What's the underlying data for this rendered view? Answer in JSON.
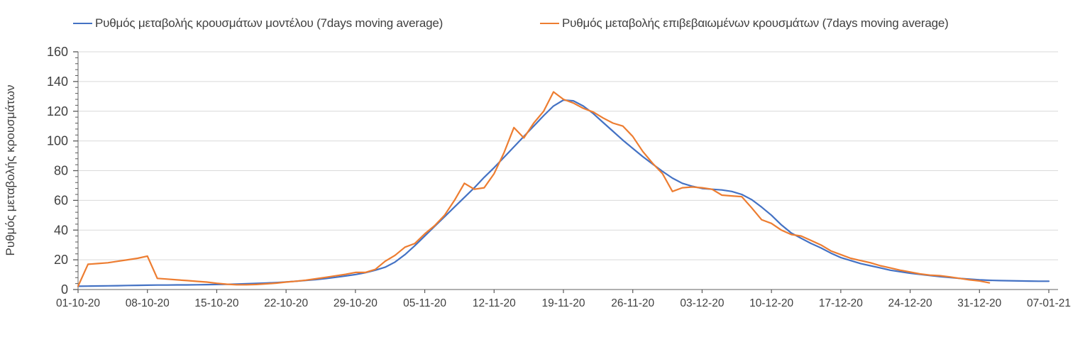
{
  "chart_data": {
    "type": "line",
    "title": "",
    "xlabel": "",
    "ylabel": "Ρυθμός μεταβολής κρουσμάτων",
    "ylim": [
      0,
      160
    ],
    "y_ticks": [
      0,
      20,
      40,
      60,
      80,
      100,
      120,
      140,
      160
    ],
    "y_minor_tick_step": 4,
    "grid": "horizontal gridlines at every 20 units",
    "gridline_color": "#d9d9d9",
    "axis_color": "#808080",
    "tick_color": "#595959",
    "text_color": "#404040",
    "legend_position": "top",
    "x_tick_labels": [
      "01-10-20",
      "08-10-20",
      "15-10-20",
      "22-10-20",
      "29-10-20",
      "05-11-20",
      "12-11-20",
      "19-11-20",
      "26-11-20",
      "03-12-20",
      "10-12-20",
      "17-12-20",
      "24-12-20",
      "31-12-20",
      "07-01-21"
    ],
    "x_days_per_tick": 7,
    "x_total_days": 98,
    "x_unit": "daily points, dd-mm-yy",
    "series": [
      {
        "name": "Ρυθμός μεταβολής κρουσμάτων μοντέλου (7days moving average)",
        "color": "#4472C4",
        "start_day": 0,
        "values": [
          2.2,
          2.3,
          2.4,
          2.5,
          2.6,
          2.7,
          2.8,
          2.9,
          3,
          3,
          3.1,
          3.1,
          3.2,
          3.3,
          3.4,
          3.5,
          3.7,
          3.9,
          4.1,
          4.4,
          4.7,
          5.1,
          5.6,
          6.1,
          6.7,
          7.4,
          8.2,
          9.1,
          10.1,
          11.3,
          13,
          15,
          18.5,
          23.5,
          29.5,
          36,
          42.5,
          49,
          55.5,
          62,
          68.5,
          75.5,
          82,
          89,
          96,
          103,
          110,
          117,
          123.5,
          127.5,
          127,
          123.5,
          118.5,
          112.5,
          106.5,
          100.5,
          95,
          89.5,
          84.5,
          79.5,
          75,
          71.5,
          69.5,
          68,
          67.5,
          67,
          66,
          64,
          60.5,
          55.5,
          50,
          43.5,
          38,
          34.5,
          31,
          28,
          24.5,
          21.5,
          19.5,
          17.5,
          16,
          14.5,
          13,
          12,
          11,
          10.2,
          9.4,
          8.7,
          8.1,
          7.5,
          7,
          6.5,
          6.2,
          6,
          5.9,
          5.8,
          5.7,
          5.6,
          5.6
        ]
      },
      {
        "name": "Ρυθμός μεταβολής επιβεβαιωμένων κρουσμάτων (7days moving average)",
        "color": "#ED7D31",
        "start_day": 0,
        "values": [
          2.2,
          17,
          17.5,
          18,
          19,
          20,
          21,
          22.5,
          7.5,
          7,
          6.5,
          6,
          5.5,
          5,
          4.2,
          3.6,
          3.2,
          3.2,
          3.4,
          3.8,
          4.3,
          5,
          5.6,
          6.3,
          7.2,
          8.2,
          9.2,
          10.2,
          11.5,
          11.5,
          13.5,
          19,
          23,
          28.5,
          31,
          37.5,
          43,
          50,
          60,
          71.5,
          67.5,
          68.5,
          78,
          92,
          109,
          102,
          112,
          120,
          133,
          128,
          125.5,
          122,
          119.5,
          115.5,
          112,
          110,
          103,
          93,
          85,
          78,
          66,
          68.5,
          69,
          68.5,
          67.5,
          63.5,
          63,
          62.5,
          55,
          47,
          44.5,
          40,
          37,
          36,
          33,
          30,
          26,
          23.5,
          21,
          19.5,
          18,
          16,
          14.5,
          13,
          11.8,
          10.5,
          9.7,
          9.3,
          8.5,
          7.5,
          6.5,
          5.8,
          4.5
        ]
      }
    ]
  }
}
